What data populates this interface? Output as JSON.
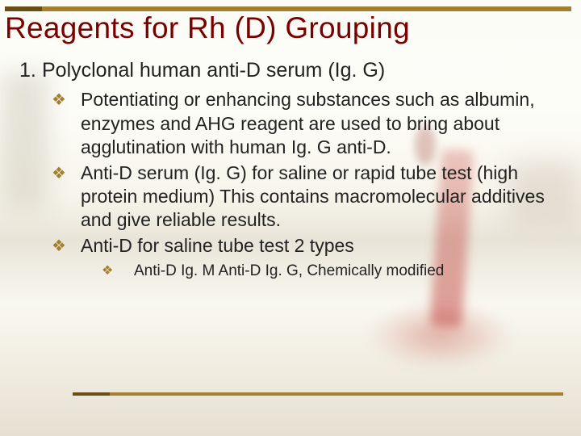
{
  "colors": {
    "title": "#7a0000",
    "rule": "#a57f30",
    "rule_accent": "#6a4d14",
    "bullet_marker": "#a57f30",
    "text": "#222222",
    "background_base": "#fcfcf7"
  },
  "typography": {
    "family": "Comic Sans MS",
    "title_size_pt": 28,
    "list_size_pt": 19,
    "bullet_size_pt": 17,
    "subbullet_size_pt": 14
  },
  "title": "Reagents for Rh (D) Grouping",
  "list": {
    "number": "1.",
    "text": "Polyclonal human anti-D serum (Ig. G)"
  },
  "bullets": [
    "Potentiating or enhancing substances such as albumin, enzymes and AHG reagent are used to bring about agglutination with human Ig. G anti-D.",
    "Anti-D serum (Ig. G) for saline or rapid tube test (high protein medium) This contains macromolecular additives and give reliable results.",
    "Anti-D for saline tube test 2 types"
  ],
  "subbullets": [
    "Anti-D  Ig. M Anti-D  Ig. G, Chemically modified"
  ],
  "marker_glyph": "❖"
}
